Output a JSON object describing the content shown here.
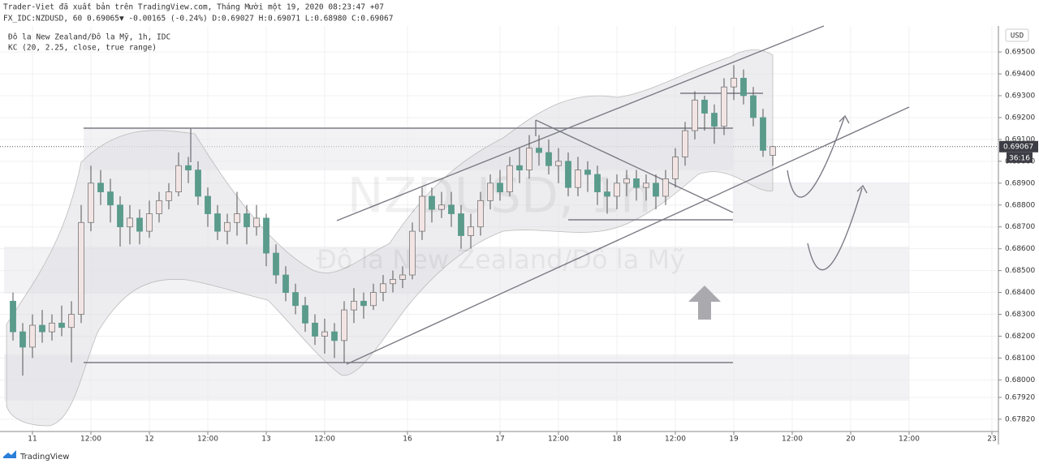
{
  "header": {
    "published": "Trader-Viet đã xuất bản trên TradingView.com, Tháng Mười một 19, 2020 08:23:47 +07",
    "quote": "FX_IDC:NZDUSD, 60 0.69065▼ -0.00165 (-0.24%) D:0.69027 H:0.69071 L:0.68980 C:0.69067"
  },
  "footer": "TradingView",
  "chart_data": {
    "type": "candlestick",
    "legend": [
      "Đô la New Zealand/Đô la Mỹ, 1h, IDC",
      "KC (20, 2.25, close, true range)"
    ],
    "watermark": [
      "NZDUSD, 1h",
      "Đô la New Zealand/Đô la Mỹ"
    ],
    "currency": "USD",
    "countdown": "36:16",
    "current_price": {
      "value": 0.69067,
      "label": "0.69067"
    },
    "up_color": "#f3e4e4",
    "down_color": "#5a9b8c",
    "x": [
      -4,
      -2,
      0,
      2,
      4,
      6,
      8,
      10,
      12,
      14,
      16,
      18,
      20,
      22,
      24,
      26,
      28,
      30,
      32,
      34,
      36,
      38,
      40,
      42,
      44,
      46,
      48,
      50,
      52,
      54,
      56,
      58,
      60,
      62,
      64,
      66,
      68,
      70,
      72,
      74,
      76,
      78,
      80,
      82,
      84,
      86,
      88,
      90,
      92,
      94,
      96,
      98,
      100,
      102,
      104,
      106,
      108,
      110,
      112,
      114,
      116,
      118,
      120,
      122,
      124,
      126,
      128,
      130,
      132,
      134,
      136,
      138,
      140,
      142,
      144,
      146,
      148,
      150,
      152
    ],
    "open": [
      0.6836,
      0.6822,
      0.6815,
      0.6825,
      0.6822,
      0.6826,
      0.6824,
      0.683,
      0.6872,
      0.689,
      0.6886,
      0.688,
      0.687,
      0.6874,
      0.6868,
      0.6876,
      0.6882,
      0.6886,
      0.6898,
      0.6896,
      0.6884,
      0.6876,
      0.6868,
      0.6872,
      0.6876,
      0.687,
      0.6874,
      0.6858,
      0.6848,
      0.684,
      0.6834,
      0.6826,
      0.682,
      0.6822,
      0.6818,
      0.6832,
      0.6836,
      0.6834,
      0.684,
      0.6844,
      0.6846,
      0.6848,
      0.6868,
      0.6884,
      0.6878,
      0.688,
      0.6876,
      0.6866,
      0.687,
      0.6882,
      0.689,
      0.6886,
      0.6898,
      0.6896,
      0.6906,
      0.6904,
      0.6898,
      0.69,
      0.6888,
      0.6896,
      0.6894,
      0.6886,
      0.6884,
      0.689,
      0.6892,
      0.6888,
      0.689,
      0.6884,
      0.6892,
      0.6902,
      0.6914,
      0.6928,
      0.6922,
      0.6916,
      0.6934,
      0.6938,
      0.693,
      0.692,
      0.69027
    ],
    "high": [
      0.684,
      0.6826,
      0.683,
      0.6832,
      0.683,
      0.6834,
      0.6836,
      0.688,
      0.6898,
      0.6896,
      0.6892,
      0.6884,
      0.688,
      0.6878,
      0.6882,
      0.6886,
      0.689,
      0.6904,
      0.6902,
      0.69,
      0.6888,
      0.688,
      0.6876,
      0.6886,
      0.688,
      0.688,
      0.6876,
      0.6862,
      0.6852,
      0.6844,
      0.6838,
      0.683,
      0.6828,
      0.6826,
      0.6836,
      0.6842,
      0.684,
      0.6844,
      0.6848,
      0.685,
      0.6852,
      0.6872,
      0.6888,
      0.6888,
      0.6886,
      0.6886,
      0.688,
      0.6876,
      0.6886,
      0.6894,
      0.6896,
      0.6902,
      0.6906,
      0.6912,
      0.6912,
      0.691,
      0.6906,
      0.6904,
      0.6902,
      0.69,
      0.6898,
      0.6892,
      0.6894,
      0.6896,
      0.6896,
      0.6894,
      0.6894,
      0.6896,
      0.6906,
      0.6918,
      0.6932,
      0.693,
      0.6926,
      0.6938,
      0.6944,
      0.6942,
      0.6934,
      0.6924,
      0.69071
    ],
    "low": [
      0.6818,
      0.6802,
      0.681,
      0.6817,
      0.6818,
      0.682,
      0.6808,
      0.6826,
      0.6868,
      0.688,
      0.6872,
      0.6861,
      0.6862,
      0.6862,
      0.6865,
      0.6872,
      0.6878,
      0.6884,
      0.689,
      0.688,
      0.687,
      0.6864,
      0.6862,
      0.6866,
      0.6862,
      0.6866,
      0.6852,
      0.6844,
      0.6836,
      0.683,
      0.6822,
      0.6816,
      0.6812,
      0.681,
      0.6808,
      0.6826,
      0.6828,
      0.6832,
      0.6836,
      0.684,
      0.6842,
      0.6846,
      0.6864,
      0.6872,
      0.6874,
      0.687,
      0.686,
      0.686,
      0.6866,
      0.6878,
      0.6882,
      0.6884,
      0.689,
      0.6892,
      0.6898,
      0.6894,
      0.689,
      0.6884,
      0.6884,
      0.6886,
      0.688,
      0.6876,
      0.6878,
      0.6884,
      0.6882,
      0.6882,
      0.6878,
      0.688,
      0.6888,
      0.6898,
      0.691,
      0.6914,
      0.6908,
      0.6912,
      0.6928,
      0.6926,
      0.6916,
      0.6902,
      0.6898
    ],
    "close": [
      0.6822,
      0.6815,
      0.6825,
      0.6822,
      0.6826,
      0.6824,
      0.683,
      0.6872,
      0.689,
      0.6886,
      0.688,
      0.687,
      0.6874,
      0.6868,
      0.6876,
      0.6882,
      0.6886,
      0.6898,
      0.6896,
      0.6884,
      0.6876,
      0.6868,
      0.6872,
      0.6876,
      0.687,
      0.6874,
      0.6858,
      0.6848,
      0.684,
      0.6834,
      0.6826,
      0.682,
      0.6822,
      0.6818,
      0.6832,
      0.6836,
      0.6834,
      0.684,
      0.6844,
      0.6846,
      0.6848,
      0.6868,
      0.6884,
      0.6878,
      0.688,
      0.6876,
      0.6866,
      0.687,
      0.6882,
      0.689,
      0.6886,
      0.6898,
      0.6896,
      0.6906,
      0.6904,
      0.6898,
      0.69,
      0.6888,
      0.6896,
      0.6894,
      0.6886,
      0.6884,
      0.689,
      0.6892,
      0.6888,
      0.689,
      0.6884,
      0.6892,
      0.6902,
      0.6914,
      0.6928,
      0.6922,
      0.6916,
      0.6934,
      0.6938,
      0.693,
      0.692,
      0.6905,
      0.69067
    ],
    "xlim": [
      -6.667,
      198.333
    ],
    "xticks": [
      {
        "value": 0,
        "label": "11"
      },
      {
        "value": 12,
        "label": "12:00"
      },
      {
        "value": 24,
        "label": "12"
      },
      {
        "value": 36,
        "label": "12:00"
      },
      {
        "value": 48,
        "label": "13"
      },
      {
        "value": 60,
        "label": "12:00"
      },
      {
        "value": 77,
        "label": "16"
      },
      {
        "value": 96,
        "label": "17"
      },
      {
        "value": 108,
        "label": "12:00"
      },
      {
        "value": 120,
        "label": "18"
      },
      {
        "value": 132,
        "label": "12:00"
      },
      {
        "value": 144,
        "label": "19"
      },
      {
        "value": 156,
        "label": "12:00"
      },
      {
        "value": 168,
        "label": "20"
      },
      {
        "value": 180,
        "label": "12:00"
      },
      {
        "value": 197,
        "label": "23"
      }
    ],
    "ylim": [
      0.67764,
      0.69619
    ],
    "yticks": [
      {
        "value": 0.6782,
        "label": "0.67820"
      },
      {
        "value": 0.6792,
        "label": "0.67920"
      },
      {
        "value": 0.68,
        "label": "0.68000"
      },
      {
        "value": 0.681,
        "label": "0.68100"
      },
      {
        "value": 0.682,
        "label": "0.68200"
      },
      {
        "value": 0.683,
        "label": "0.68300"
      },
      {
        "value": 0.684,
        "label": "0.68400"
      },
      {
        "value": 0.685,
        "label": "0.68500"
      },
      {
        "value": 0.686,
        "label": "0.68600"
      },
      {
        "value": 0.687,
        "label": "0.68700"
      },
      {
        "value": 0.688,
        "label": "0.68800"
      },
      {
        "value": 0.689,
        "label": "0.68900"
      },
      {
        "value": 0.69,
        "label": "0.69000"
      },
      {
        "value": 0.691,
        "label": "0.69100"
      },
      {
        "value": 0.692,
        "label": "0.69200"
      },
      {
        "value": 0.693,
        "label": "0.69300"
      },
      {
        "value": 0.694,
        "label": "0.69400"
      },
      {
        "value": 0.695,
        "label": "0.69500"
      }
    ],
    "grid": true
  }
}
